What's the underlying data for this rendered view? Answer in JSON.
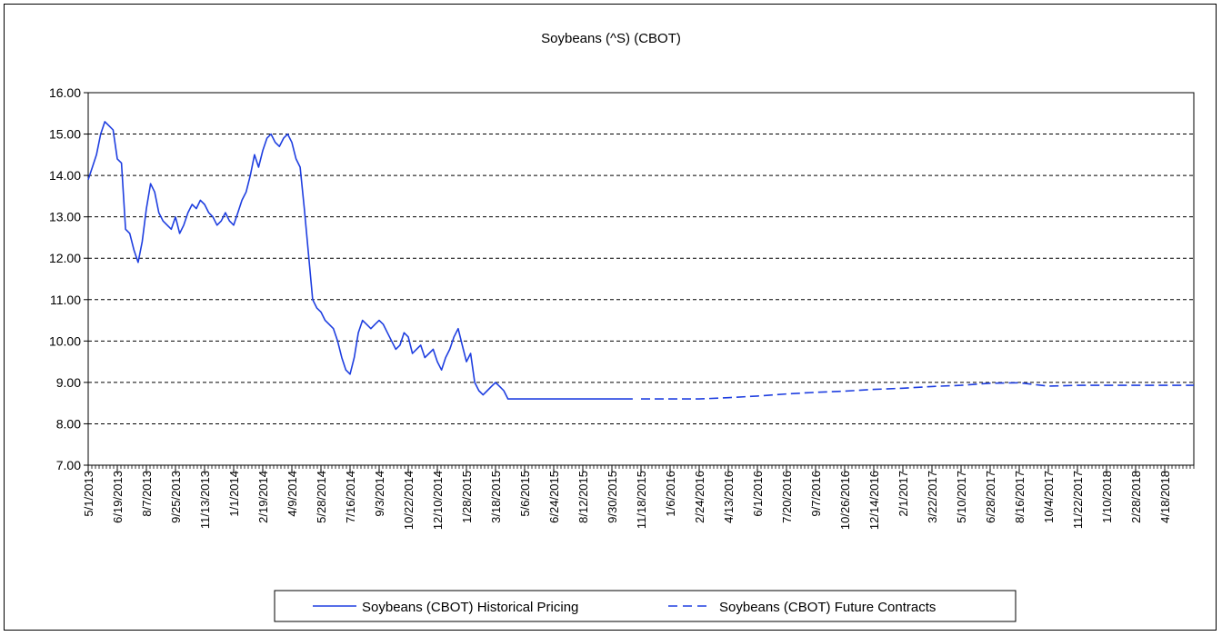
{
  "chart_data": {
    "type": "line",
    "title": "Soybeans (^S) (CBOT)",
    "xlabel": "",
    "ylabel": "",
    "ylim": [
      7.0,
      16.0
    ],
    "yticks": [
      "7.00",
      "8.00",
      "9.00",
      "10.00",
      "11.00",
      "12.00",
      "13.00",
      "14.00",
      "15.00",
      "16.00"
    ],
    "xticks": [
      "5/1/2013",
      "6/19/2013",
      "8/7/2013",
      "9/25/2013",
      "11/13/2013",
      "1/1/2014",
      "2/19/2014",
      "4/9/2014",
      "5/28/2014",
      "7/16/2014",
      "9/3/2014",
      "10/22/2014",
      "12/10/2014",
      "1/28/2015",
      "3/18/2015",
      "5/6/2015",
      "6/24/2015",
      "8/12/2015",
      "9/30/2015",
      "11/18/2015",
      "1/6/2016",
      "2/24/2016",
      "4/13/2016",
      "6/1/2016",
      "7/20/2016",
      "9/7/2016",
      "10/26/2016",
      "12/14/2016",
      "2/1/2017",
      "3/22/2017",
      "5/10/2017",
      "6/28/2017",
      "8/16/2017",
      "10/4/2017",
      "11/22/2017",
      "1/10/2018",
      "2/28/2018",
      "4/18/2018"
    ],
    "grid": "horizontal-dashed",
    "legend_position": "bottom",
    "series": [
      {
        "name": "Soybeans (CBOT) Historical Pricing",
        "color": "#1f3fe0",
        "style": "solid",
        "x": [
          "5/1/2013",
          "5/8/2013",
          "5/15/2013",
          "5/22/2013",
          "5/29/2013",
          "6/5/2013",
          "6/12/2013",
          "6/19/2013",
          "6/26/2013",
          "7/3/2013",
          "7/10/2013",
          "7/17/2013",
          "7/24/2013",
          "7/31/2013",
          "8/7/2013",
          "8/14/2013",
          "8/21/2013",
          "8/28/2013",
          "9/4/2013",
          "9/11/2013",
          "9/18/2013",
          "9/25/2013",
          "10/2/2013",
          "10/9/2013",
          "10/16/2013",
          "10/23/2013",
          "10/30/2013",
          "11/6/2013",
          "11/13/2013",
          "11/20/2013",
          "11/27/2013",
          "12/4/2013",
          "12/11/2013",
          "12/18/2013",
          "12/25/2013",
          "1/1/2014",
          "1/8/2014",
          "1/15/2014",
          "1/22/2014",
          "1/29/2014",
          "2/5/2014",
          "2/12/2014",
          "2/19/2014",
          "2/26/2014",
          "3/5/2014",
          "3/12/2014",
          "3/19/2014",
          "3/26/2014",
          "4/2/2014",
          "4/9/2014",
          "4/16/2014",
          "4/23/2014",
          "4/30/2014",
          "5/7/2014",
          "5/14/2014",
          "5/21/2014",
          "5/28/2014",
          "6/4/2014",
          "6/11/2014",
          "6/18/2014",
          "6/25/2014",
          "7/2/2014",
          "7/9/2014",
          "7/16/2014",
          "7/23/2014",
          "7/30/2014",
          "8/6/2014",
          "8/13/2014",
          "8/20/2014",
          "8/27/2014",
          "9/3/2014",
          "9/10/2014",
          "9/17/2014",
          "9/24/2014",
          "10/1/2014",
          "10/8/2014",
          "10/15/2014",
          "10/22/2014",
          "10/29/2014",
          "11/5/2014",
          "11/12/2014",
          "11/19/2014",
          "11/26/2014",
          "12/3/2014",
          "12/10/2014",
          "12/17/2014",
          "12/24/2014",
          "12/31/2014",
          "1/7/2015",
          "1/14/2015",
          "1/21/2015",
          "1/28/2015",
          "2/4/2015",
          "2/11/2015",
          "2/18/2015",
          "2/25/2015",
          "3/4/2015",
          "3/11/2015",
          "3/18/2015",
          "3/25/2015",
          "4/1/2015",
          "4/8/2015",
          "4/15/2015",
          "4/22/2015",
          "4/29/2015",
          "5/6/2015",
          "5/13/2015",
          "5/20/2015",
          "5/27/2015",
          "6/3/2015",
          "6/10/2015",
          "6/17/2015",
          "6/24/2015",
          "7/1/2015",
          "7/8/2015",
          "7/15/2015",
          "7/22/2015",
          "7/29/2015",
          "8/5/2015",
          "8/12/2015",
          "8/19/2015",
          "8/26/2015",
          "9/2/2015",
          "9/9/2015",
          "9/16/2015",
          "9/23/2015",
          "9/30/2015",
          "10/7/2015",
          "10/14/2015",
          "10/21/2015",
          "10/28/2015",
          "11/4/2015"
        ],
        "values": [
          13.9,
          14.2,
          14.5,
          15.0,
          15.3,
          15.2,
          15.1,
          14.4,
          14.3,
          12.7,
          12.6,
          12.2,
          11.9,
          12.4,
          13.2,
          13.8,
          13.6,
          13.1,
          12.9,
          12.8,
          12.7,
          13.0,
          12.6,
          12.8,
          13.1,
          13.3,
          13.2,
          13.4,
          13.3,
          13.1,
          13.0,
          12.8,
          12.9,
          13.1,
          12.9,
          12.8,
          13.1,
          13.4,
          13.6,
          14.0,
          14.5,
          14.2,
          14.6,
          14.9,
          15.0,
          14.8,
          14.7,
          14.9,
          15.0,
          14.8,
          14.4,
          14.2,
          13.2,
          12.1,
          11.0,
          10.8,
          10.7,
          10.5,
          10.4,
          10.3,
          10.0,
          9.6,
          9.3,
          9.2,
          9.6,
          10.2,
          10.5,
          10.4,
          10.3,
          10.4,
          10.5,
          10.4,
          10.2,
          10.0,
          9.8,
          9.9,
          10.2,
          10.1,
          9.7,
          9.8,
          9.9,
          9.6,
          9.7,
          9.8,
          9.5,
          9.3,
          9.6,
          9.8,
          10.1,
          10.3,
          9.9,
          9.5,
          9.7,
          9.0,
          8.8,
          8.7,
          8.8,
          8.9,
          9.0,
          8.9,
          8.8,
          8.6,
          8.6,
          8.6,
          8.6,
          8.6,
          8.6,
          8.6,
          8.6,
          8.6,
          8.6,
          8.6,
          8.6,
          8.6,
          8.6,
          8.6,
          8.6,
          8.6,
          8.6,
          8.6,
          8.6,
          8.6,
          8.6,
          8.6,
          8.6,
          8.6,
          8.6,
          8.6,
          8.6,
          8.6,
          8.6,
          8.6
        ]
      },
      {
        "name": "Soybeans (CBOT) Future Contracts",
        "color": "#1f3fe0",
        "style": "dashed",
        "x": [
          "11/18/2015",
          "1/6/2016",
          "2/24/2016",
          "4/13/2016",
          "6/1/2016",
          "7/20/2016",
          "9/7/2016",
          "10/26/2016",
          "12/14/2016",
          "2/1/2017",
          "3/22/2017",
          "5/10/2017",
          "6/28/2017",
          "8/16/2017",
          "10/4/2017",
          "11/22/2017",
          "1/10/2018",
          "2/28/2018",
          "4/18/2018",
          "6/6/2018"
        ],
        "values": [
          8.6,
          8.6,
          8.6,
          8.63,
          8.67,
          8.72,
          8.76,
          8.79,
          8.83,
          8.86,
          8.9,
          8.93,
          8.98,
          8.99,
          8.91,
          8.93,
          8.93,
          8.93,
          8.93,
          8.93
        ]
      }
    ]
  }
}
